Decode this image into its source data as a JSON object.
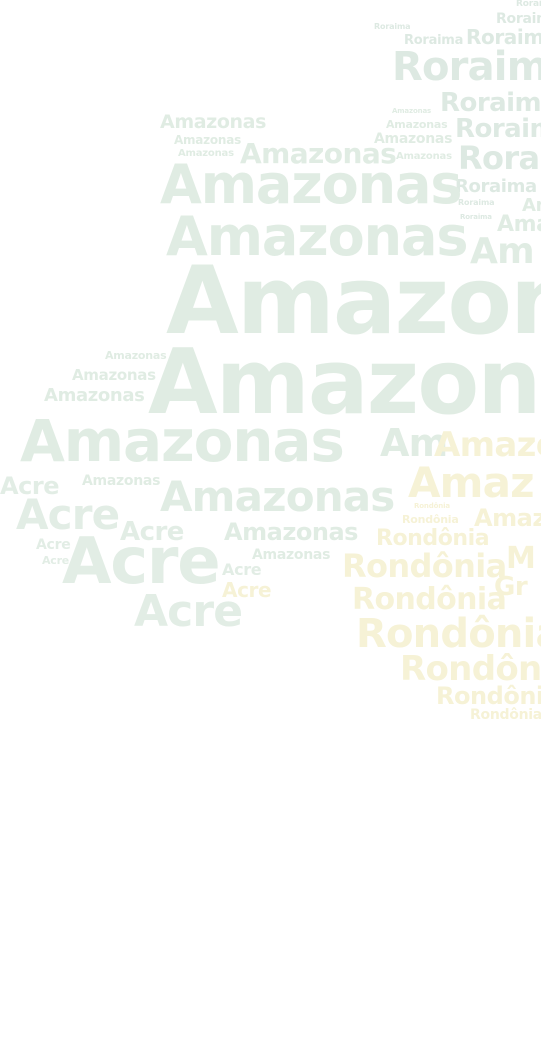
{
  "colors": {
    "amazonas": "#e0ece3",
    "roraima": "#dde9e2",
    "acre": "#e2ede5",
    "rondonia": "#f6f2d6",
    "background": "#ffffff"
  },
  "words": {
    "roraima": "Roraima",
    "amazonas": "Amazonas",
    "acre": "Acre",
    "rondonia": "Rondônia",
    "amazon_partial": "Amazon",
    "am_partial": "Am",
    "ama_partial": "Ama",
    "amaz_partial": "Amaz",
    "roraim_partial": "Roraim",
    "rorai_partial": "Rorai",
    "m_partial": "M",
    "gr_partial": "Gr"
  }
}
